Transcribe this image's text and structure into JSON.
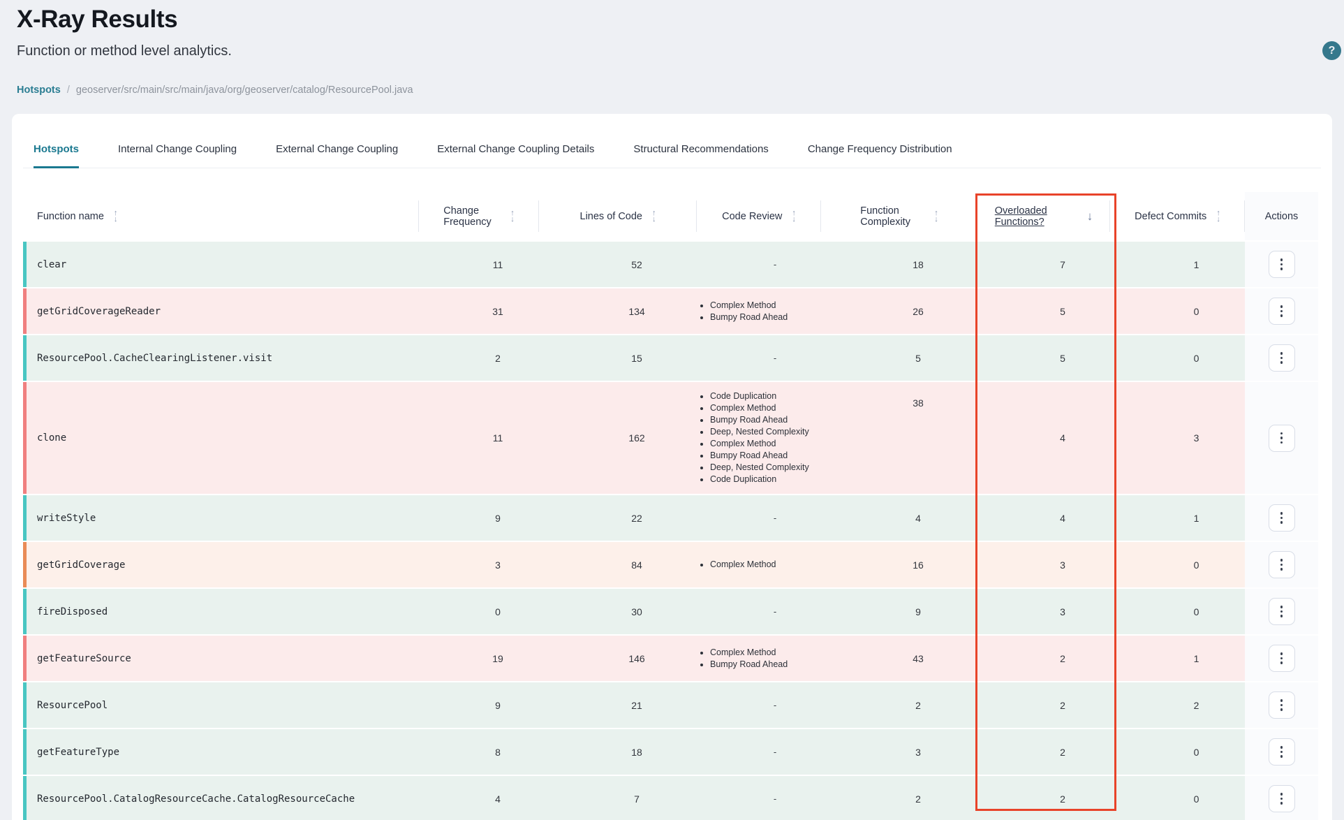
{
  "page": {
    "title": "X-Ray Results",
    "subtitle": "Function or method level analytics."
  },
  "breadcrumb": {
    "link": "Hotspots",
    "separator": "/",
    "path": "geoserver/src/main/src/main/java/org/geoserver/catalog/ResourcePool.java"
  },
  "tabs": [
    {
      "label": "Hotspots",
      "active": true
    },
    {
      "label": "Internal Change Coupling",
      "active": false
    },
    {
      "label": "External Change Coupling",
      "active": false
    },
    {
      "label": "External Change Coupling Details",
      "active": false
    },
    {
      "label": "Structural Recommendations",
      "active": false
    },
    {
      "label": "Change Frequency Distribution",
      "active": false
    }
  ],
  "icons": {
    "help": "?",
    "sort_up": "↑",
    "sort_down": "↓",
    "sort_desc": "↓",
    "kebab": "⋮"
  },
  "colors": {
    "accent_teal": "#1b7990",
    "help_badge": "#35788c",
    "highlight_border": "#e84329",
    "actions_column_bg": "#fafbfd",
    "severity": {
      "green": {
        "bg": "#e9f2ee",
        "edge": "#49c6c2"
      },
      "red": {
        "bg": "#fcebeb",
        "edge": "#f07f7f"
      },
      "orange": {
        "bg": "#fdf0ea",
        "edge": "#e98b57"
      }
    }
  },
  "table": {
    "columns": [
      {
        "id": "function_name",
        "label": "Function name",
        "sort": "both",
        "align": "left"
      },
      {
        "id": "change_frequency",
        "label": "Change Frequency",
        "sort": "both",
        "align": "center"
      },
      {
        "id": "lines_of_code",
        "label": "Lines of Code",
        "sort": "both",
        "align": "center"
      },
      {
        "id": "code_review",
        "label": "Code Review",
        "sort": "both",
        "align": "center"
      },
      {
        "id": "function_complexity",
        "label": "Function Complexity",
        "sort": "both",
        "align": "center"
      },
      {
        "id": "overloaded_functions",
        "label": "Overloaded Functions?",
        "sort": "desc",
        "align": "center",
        "underline": true,
        "highlighted": true
      },
      {
        "id": "defect_commits",
        "label": "Defect Commits",
        "sort": "both",
        "align": "center"
      },
      {
        "id": "actions",
        "label": "Actions",
        "sort": null,
        "align": "center"
      }
    ],
    "empty_review_marker": "-",
    "rows": [
      {
        "name": "clear",
        "change_frequency": 11,
        "lines_of_code": 52,
        "code_review": "-",
        "function_complexity": 18,
        "overloaded_functions": 7,
        "defect_commits": 1,
        "severity": "green",
        "tall": false
      },
      {
        "name": "getGridCoverageReader",
        "change_frequency": 31,
        "lines_of_code": 134,
        "code_review": [
          "Complex Method",
          "Bumpy Road Ahead"
        ],
        "function_complexity": 26,
        "overloaded_functions": 5,
        "defect_commits": 0,
        "severity": "red",
        "tall": false
      },
      {
        "name": "ResourcePool.CacheClearingListener.visit",
        "change_frequency": 2,
        "lines_of_code": 15,
        "code_review": "-",
        "function_complexity": 5,
        "overloaded_functions": 5,
        "defect_commits": 0,
        "severity": "green",
        "tall": false
      },
      {
        "name": "clone",
        "change_frequency": 11,
        "lines_of_code": 162,
        "code_review": [
          "Code Duplication",
          "Complex Method",
          "Bumpy Road Ahead",
          "Deep, Nested Complexity",
          "Complex Method",
          "Bumpy Road Ahead",
          "Deep, Nested Complexity",
          "Code Duplication"
        ],
        "function_complexity": 38,
        "overloaded_functions": 4,
        "defect_commits": 3,
        "severity": "red",
        "tall": true
      },
      {
        "name": "writeStyle",
        "change_frequency": 9,
        "lines_of_code": 22,
        "code_review": "-",
        "function_complexity": 4,
        "overloaded_functions": 4,
        "defect_commits": 1,
        "severity": "green",
        "tall": false
      },
      {
        "name": "getGridCoverage",
        "change_frequency": 3,
        "lines_of_code": 84,
        "code_review": [
          "Complex Method"
        ],
        "function_complexity": 16,
        "overloaded_functions": 3,
        "defect_commits": 0,
        "severity": "orange",
        "tall": false
      },
      {
        "name": "fireDisposed",
        "change_frequency": 0,
        "lines_of_code": 30,
        "code_review": "-",
        "function_complexity": 9,
        "overloaded_functions": 3,
        "defect_commits": 0,
        "severity": "green",
        "tall": false
      },
      {
        "name": "getFeatureSource",
        "change_frequency": 19,
        "lines_of_code": 146,
        "code_review": [
          "Complex Method",
          "Bumpy Road Ahead"
        ],
        "function_complexity": 43,
        "overloaded_functions": 2,
        "defect_commits": 1,
        "severity": "red",
        "tall": false
      },
      {
        "name": "ResourcePool",
        "change_frequency": 9,
        "lines_of_code": 21,
        "code_review": "-",
        "function_complexity": 2,
        "overloaded_functions": 2,
        "defect_commits": 2,
        "severity": "green",
        "tall": false
      },
      {
        "name": "getFeatureType",
        "change_frequency": 8,
        "lines_of_code": 18,
        "code_review": "-",
        "function_complexity": 3,
        "overloaded_functions": 2,
        "defect_commits": 0,
        "severity": "green",
        "tall": false
      },
      {
        "name": "ResourcePool.CatalogResourceCache.CatalogResourceCache",
        "change_frequency": 4,
        "lines_of_code": 7,
        "code_review": "-",
        "function_complexity": 2,
        "overloaded_functions": 2,
        "defect_commits": 0,
        "severity": "green",
        "tall": false
      }
    ]
  }
}
